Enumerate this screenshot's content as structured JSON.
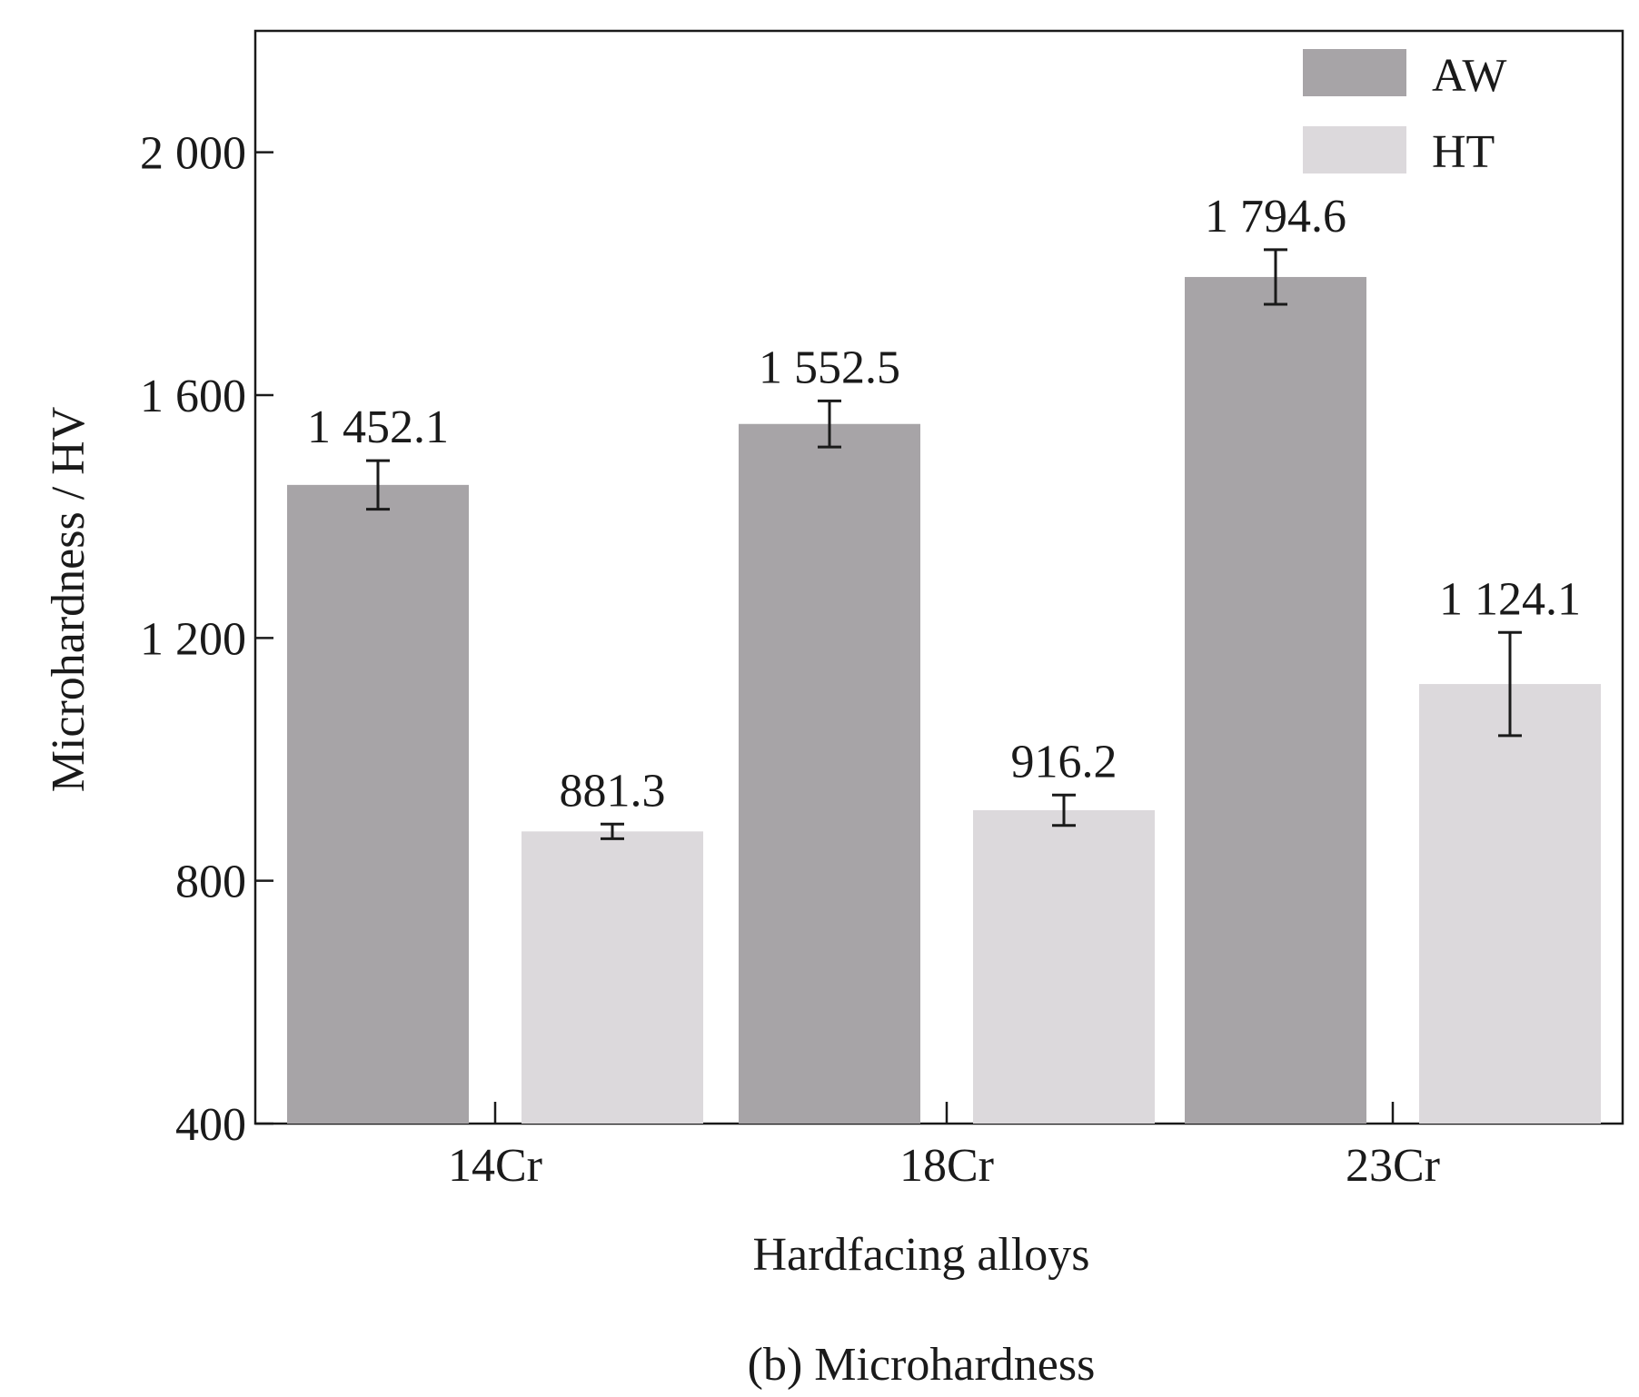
{
  "chart_data": {
    "type": "bar",
    "caption": "(b) Microhardness",
    "xlabel": "Hardfacing alloys",
    "ylabel": "Microhardness / HV",
    "ylim": [
      400,
      2200
    ],
    "yticks": [
      400,
      800,
      1200,
      1600,
      2000
    ],
    "ytick_labels": [
      "400",
      "800",
      "1 200",
      "1 600",
      "2 000"
    ],
    "categories": [
      "14Cr",
      "18Cr",
      "23Cr"
    ],
    "legend_position": "top-right",
    "grid": false,
    "series": [
      {
        "name": "AW",
        "color": "#a7a4a7",
        "values": [
          1452.1,
          1552.5,
          1794.6
        ],
        "labels": [
          "1 452.1",
          "1 552.5",
          "1 794.6"
        ],
        "errors": [
          40,
          38,
          45
        ]
      },
      {
        "name": "HT",
        "color": "#dcd9dc",
        "values": [
          881.3,
          916.2,
          1124.1
        ],
        "labels": [
          "881.3",
          "916.2",
          "1 124.1"
        ],
        "errors": [
          12,
          25,
          85
        ]
      }
    ]
  }
}
